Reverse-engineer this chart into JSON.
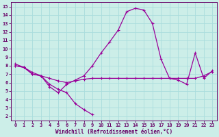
{
  "xlabel": "Windchill (Refroidissement éolien,°C)",
  "xlim": [
    -0.5,
    23.5
  ],
  "ylim": [
    1.5,
    15.5
  ],
  "xticks": [
    0,
    1,
    2,
    3,
    4,
    5,
    6,
    7,
    8,
    9,
    10,
    11,
    12,
    13,
    14,
    15,
    16,
    17,
    18,
    19,
    20,
    21,
    22,
    23
  ],
  "yticks": [
    2,
    3,
    4,
    5,
    6,
    7,
    8,
    9,
    10,
    11,
    12,
    13,
    14,
    15
  ],
  "background_color": "#cceee8",
  "grid_color": "#aadddd",
  "line_color": "#990099",
  "line1_x": [
    0,
    1,
    2,
    3,
    4,
    5,
    6,
    7,
    8,
    9
  ],
  "line1_y": [
    8.0,
    7.8,
    7.0,
    6.8,
    5.8,
    5.2,
    4.8,
    3.5,
    2.8,
    2.2
  ],
  "line2_x": [
    0,
    1,
    2,
    3,
    4,
    5,
    6,
    7,
    8,
    9,
    10,
    11,
    12,
    13,
    14,
    15,
    16,
    17,
    18,
    19,
    20,
    21,
    22,
    23
  ],
  "line2_y": [
    8.0,
    7.8,
    7.2,
    6.8,
    6.5,
    6.2,
    6.0,
    6.2,
    6.4,
    6.5,
    6.5,
    6.5,
    6.5,
    6.5,
    6.5,
    6.5,
    6.5,
    6.5,
    6.5,
    6.5,
    6.5,
    6.5,
    6.8,
    7.3
  ],
  "line3_x": [
    0,
    1,
    2,
    3,
    4,
    5,
    6,
    7,
    8,
    9,
    10,
    11,
    12,
    13,
    14,
    15,
    16,
    17,
    18,
    19,
    20,
    21,
    22,
    23
  ],
  "line3_y": [
    8.2,
    7.8,
    7.0,
    6.8,
    5.5,
    4.8,
    5.8,
    6.3,
    6.8,
    8.0,
    9.5,
    10.8,
    12.2,
    14.4,
    14.8,
    14.6,
    13.0,
    8.8,
    6.5,
    6.3,
    5.8,
    9.5,
    6.5,
    7.4
  ],
  "marker_size": 2.5,
  "line_width": 0.9,
  "tick_fontsize": 5,
  "xlabel_fontsize": 5.5
}
